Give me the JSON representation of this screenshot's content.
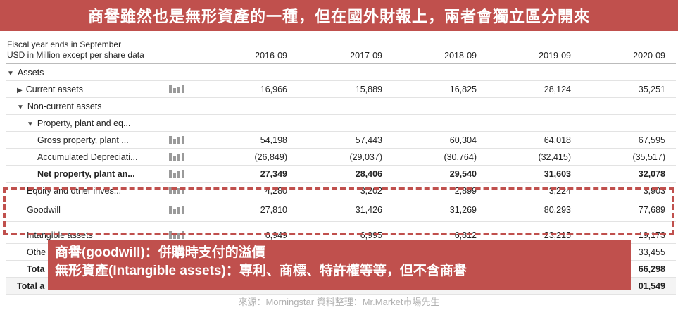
{
  "banner": {
    "top": "商譽雖然也是無形資產的一種，但在國外財報上，兩者會獨立區分開來",
    "bottom_line1": "商譽(goodwill)：併購時支付的溢價",
    "bottom_line2": "無形資產(Intangible assets)：專利、商標、特許權等等，但不含商譽"
  },
  "table": {
    "header_line1": "Fiscal year ends in September",
    "header_line2": "USD in Million except per share data",
    "years": [
      "2016-09",
      "2017-09",
      "2018-09",
      "2019-09",
      "2020-09"
    ],
    "rows": [
      {
        "label": "Assets",
        "values": [
          "",
          "",
          "",
          "",
          ""
        ]
      },
      {
        "label": "Current assets",
        "values": [
          "16,966",
          "15,889",
          "16,825",
          "28,124",
          "35,251"
        ]
      },
      {
        "label": "Non-current assets",
        "values": [
          "",
          "",
          "",
          "",
          ""
        ]
      },
      {
        "label": "Property, plant and eq...",
        "values": [
          "",
          "",
          "",
          "",
          ""
        ]
      },
      {
        "label": "Gross property, plant ...",
        "values": [
          "54,198",
          "57,443",
          "60,304",
          "64,018",
          "67,595"
        ]
      },
      {
        "label": "Accumulated Depreciati...",
        "values": [
          "(26,849)",
          "(29,037)",
          "(30,764)",
          "(32,415)",
          "(35,517)"
        ]
      },
      {
        "label": "Net property, plant an...",
        "values": [
          "27,349",
          "28,406",
          "29,540",
          "31,603",
          "32,078"
        ]
      },
      {
        "label": "Equity and other inves...",
        "values": [
          "4,280",
          "3,202",
          "2,899",
          "3,224",
          "3,903"
        ]
      },
      {
        "label": "Goodwill",
        "values": [
          "27,810",
          "31,426",
          "31,269",
          "80,293",
          "77,689"
        ]
      },
      {
        "label": "Intangible assets",
        "values": [
          "6,949",
          "6,995",
          "6,812",
          "23,215",
          "19,173"
        ]
      },
      {
        "label": "Othe",
        "values": [
          "",
          "",
          "",
          "",
          "33,455"
        ]
      },
      {
        "label": "Tota",
        "values": [
          "",
          "",
          "",
          "",
          "66,298"
        ]
      },
      {
        "label": "Total a",
        "values": [
          "",
          "",
          "",
          "",
          "01,549"
        ]
      }
    ]
  },
  "source": "來源：Morningstar  資料整理：Mr.Market市場先生"
}
